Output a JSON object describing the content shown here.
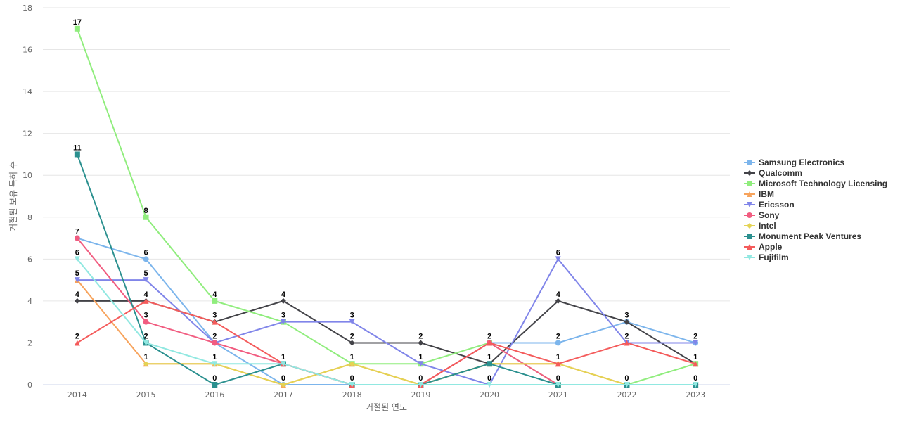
{
  "chart_data": {
    "type": "line",
    "xlabel": "거절된 연도",
    "ylabel": "거절된 보유 특허 수",
    "ylim": [
      0,
      18
    ],
    "yticks": [
      0,
      2,
      4,
      6,
      8,
      10,
      12,
      14,
      16,
      18
    ],
    "grid": true,
    "legend_position": "right",
    "categories": [
      "2014",
      "2015",
      "2016",
      "2017",
      "2018",
      "2019",
      "2020",
      "2021",
      "2022",
      "2023"
    ],
    "series": [
      {
        "name": "Samsung Electronics",
        "color": "#7cb5ec",
        "marker": "circle",
        "values": [
          7,
          6,
          2,
          0,
          0,
          0,
          2,
          2,
          3,
          2
        ]
      },
      {
        "name": "Qualcomm",
        "color": "#434348",
        "marker": "diamond",
        "values": [
          4,
          4,
          3,
          4,
          2,
          2,
          1,
          4,
          3,
          1
        ]
      },
      {
        "name": "Microsoft Technology Licensing",
        "color": "#90ed7d",
        "marker": "square",
        "values": [
          17,
          8,
          4,
          3,
          1,
          1,
          2,
          0,
          0,
          1
        ]
      },
      {
        "name": "IBM",
        "color": "#f7a35c",
        "marker": "triangle",
        "values": [
          5,
          1,
          1,
          0,
          1,
          0,
          1,
          1,
          0,
          0
        ]
      },
      {
        "name": "Ericsson",
        "color": "#8085e9",
        "marker": "triangle-down",
        "values": [
          5,
          5,
          2,
          3,
          3,
          1,
          0,
          6,
          2,
          2
        ]
      },
      {
        "name": "Sony",
        "color": "#f15c80",
        "marker": "circle",
        "values": [
          7,
          3,
          2,
          1,
          0,
          0,
          2,
          0,
          0,
          0
        ]
      },
      {
        "name": "Intel",
        "color": "#e4d354",
        "marker": "diamond",
        "values": [
          null,
          1,
          1,
          0,
          1,
          0,
          1,
          1,
          0,
          0
        ]
      },
      {
        "name": "Monument Peak Ventures",
        "color": "#2b908f",
        "marker": "square",
        "values": [
          11,
          2,
          0,
          1,
          0,
          0,
          1,
          0,
          0,
          0
        ]
      },
      {
        "name": "Apple",
        "color": "#f45b5b",
        "marker": "triangle",
        "values": [
          2,
          4,
          3,
          1,
          0,
          0,
          2,
          1,
          2,
          1
        ]
      },
      {
        "name": "Fujifilm",
        "color": "#91e8e1",
        "marker": "triangle-down",
        "values": [
          6,
          2,
          1,
          1,
          0,
          0,
          0,
          0,
          0,
          0
        ]
      }
    ],
    "data_labels": [
      {
        "series": "Microsoft Technology Licensing",
        "x": "2014",
        "value": "17"
      },
      {
        "series": "Monument Peak Ventures",
        "x": "2014",
        "value": "11"
      },
      {
        "series": "Samsung Electronics",
        "x": "2014",
        "value": "7"
      },
      {
        "series": "Fujifilm",
        "x": "2014",
        "value": "6"
      },
      {
        "series": "IBM",
        "x": "2014",
        "value": "5"
      },
      {
        "series": "Qualcomm",
        "x": "2014",
        "value": "4"
      },
      {
        "series": "Apple",
        "x": "2014",
        "value": "2"
      },
      {
        "series": "Microsoft Technology Licensing",
        "x": "2015",
        "value": "8"
      },
      {
        "series": "Samsung Electronics",
        "x": "2015",
        "value": "6"
      },
      {
        "series": "Ericsson",
        "x": "2015",
        "value": "5"
      },
      {
        "series": "Qualcomm",
        "x": "2015",
        "value": "4"
      },
      {
        "series": "Sony",
        "x": "2015",
        "value": "3"
      },
      {
        "series": "Monument Peak Ventures",
        "x": "2015",
        "value": "2"
      },
      {
        "series": "IBM",
        "x": "2015",
        "value": "1"
      },
      {
        "series": "Microsoft Technology Licensing",
        "x": "2016",
        "value": "4"
      },
      {
        "series": "Qualcomm",
        "x": "2016",
        "value": "3"
      },
      {
        "series": "Sony",
        "x": "2016",
        "value": "2"
      },
      {
        "series": "Fujifilm",
        "x": "2016",
        "value": "1"
      },
      {
        "series": "Monument Peak Ventures",
        "x": "2016",
        "value": "0"
      },
      {
        "series": "Qualcomm",
        "x": "2017",
        "value": "4"
      },
      {
        "series": "Ericsson",
        "x": "2017",
        "value": "3"
      },
      {
        "series": "Apple",
        "x": "2017",
        "value": "1"
      },
      {
        "series": "Intel",
        "x": "2017",
        "value": "0"
      },
      {
        "series": "Ericsson",
        "x": "2018",
        "value": "3"
      },
      {
        "series": "Qualcomm",
        "x": "2018",
        "value": "2"
      },
      {
        "series": "Microsoft Technology Licensing",
        "x": "2018",
        "value": "1"
      },
      {
        "series": "Samsung Electronics",
        "x": "2018",
        "value": "0"
      },
      {
        "series": "Qualcomm",
        "x": "2019",
        "value": "2"
      },
      {
        "series": "Ericsson",
        "x": "2019",
        "value": "1"
      },
      {
        "series": "Sony",
        "x": "2019",
        "value": "0"
      },
      {
        "series": "Microsoft Technology Licensing",
        "x": "2020",
        "value": "2"
      },
      {
        "series": "Qualcomm",
        "x": "2020",
        "value": "1"
      },
      {
        "series": "Ericsson",
        "x": "2020",
        "value": "0"
      },
      {
        "series": "Ericsson",
        "x": "2021",
        "value": "6"
      },
      {
        "series": "Qualcomm",
        "x": "2021",
        "value": "4"
      },
      {
        "series": "Samsung Electronics",
        "x": "2021",
        "value": "2"
      },
      {
        "series": "Apple",
        "x": "2021",
        "value": "1"
      },
      {
        "series": "Sony",
        "x": "2021",
        "value": "0"
      },
      {
        "series": "Qualcomm",
        "x": "2022",
        "value": "3"
      },
      {
        "series": "Ericsson",
        "x": "2022",
        "value": "2"
      },
      {
        "series": "Intel",
        "x": "2022",
        "value": "0"
      },
      {
        "series": "Samsung Electronics",
        "x": "2023",
        "value": "2"
      },
      {
        "series": "Qualcomm",
        "x": "2023",
        "value": "1"
      },
      {
        "series": "Fujifilm",
        "x": "2023",
        "value": "0"
      }
    ]
  }
}
